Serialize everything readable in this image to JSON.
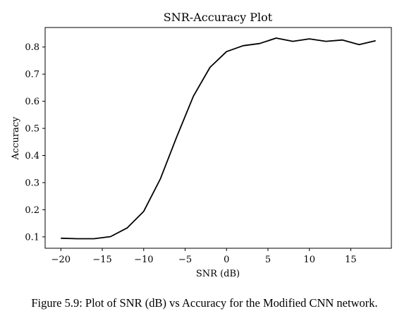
{
  "chart_data": {
    "type": "line",
    "title": "SNR-Accuracy Plot",
    "xlabel": "SNR (dB)",
    "ylabel": "Accuracy",
    "xlim": [
      -21.9,
      19.9
    ],
    "ylim": [
      0.058,
      0.872
    ],
    "xticks": [
      -20,
      -15,
      -10,
      -5,
      0,
      5,
      10,
      15
    ],
    "xtick_labels": [
      "−20",
      "−15",
      "−10",
      "−5",
      "0",
      "5",
      "10",
      "15"
    ],
    "yticks": [
      0.1,
      0.2,
      0.3,
      0.4,
      0.5,
      0.6,
      0.7,
      0.8
    ],
    "ytick_labels": [
      "0.1",
      "0.2",
      "0.3",
      "0.4",
      "0.5",
      "0.6",
      "0.7",
      "0.8"
    ],
    "grid": false,
    "line_color": "#000000",
    "series": [
      {
        "x": [
          -20,
          -18,
          -16,
          -14,
          -12,
          -10,
          -8,
          -6,
          -4,
          -2,
          0,
          2,
          4,
          6,
          8,
          10,
          12,
          14,
          16,
          18
        ],
        "values": [
          0.095,
          0.093,
          0.093,
          0.101,
          0.133,
          0.194,
          0.313,
          0.47,
          0.619,
          0.725,
          0.783,
          0.805,
          0.813,
          0.833,
          0.821,
          0.83,
          0.821,
          0.826,
          0.809,
          0.823
        ]
      }
    ]
  },
  "caption": "Figure 5.9: Plot of SNR (dB) vs Accuracy for the Modified CNN network."
}
